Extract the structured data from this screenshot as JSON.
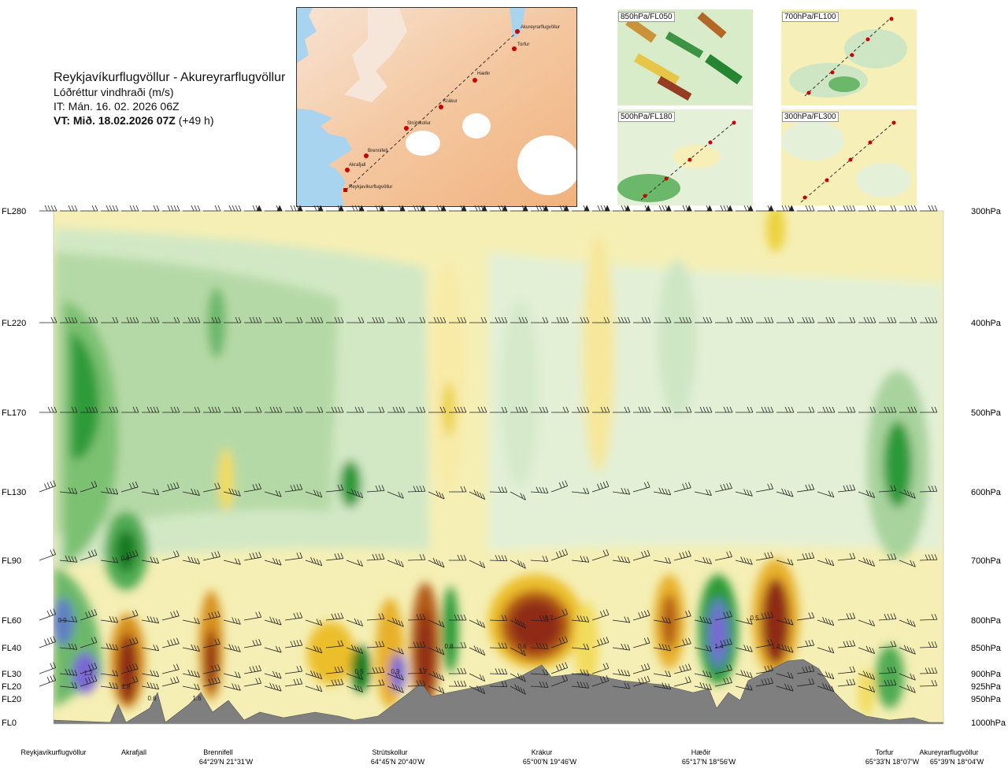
{
  "title": {
    "route": "Reykjavíkurflugvöllur - Akureyrarflugvöllur",
    "variable": "Lóðréttur vindhraði (m/s)",
    "issue_time": "IT: Mán. 16. 02. 2026 06Z",
    "valid_time": "VT: Mið. 18.02.2026 07Z",
    "lead": "(+49 h)"
  },
  "map": {
    "route_points": [
      "Akureyrarflugvöllur",
      "Torfur",
      "Hæðir",
      "Krákur",
      "Strútskollur",
      "Brennifell",
      "Akrafjall",
      "Reykjavíkurflugvöllur"
    ]
  },
  "thumbnails": [
    {
      "label": "850hPa/FL050"
    },
    {
      "label": "700hPa/FL100"
    },
    {
      "label": "500hPa/FL180"
    },
    {
      "label": "300hPa/FL300"
    }
  ],
  "chart_data": {
    "type": "heatmap",
    "title": "",
    "xlabel": "",
    "ylabel": "",
    "levels": [
      {
        "fl": "FL280",
        "hpa": "300hPa",
        "y": 268
      },
      {
        "fl": "FL220",
        "hpa": "400hPa",
        "y": 410
      },
      {
        "fl": "FL170",
        "hpa": "500hPa",
        "y": 524
      },
      {
        "fl": "FL130",
        "hpa": "600hPa",
        "y": 625
      },
      {
        "fl": "FL90",
        "hpa": "700hPa",
        "y": 712
      },
      {
        "fl": "FL60",
        "hpa": "800hPa",
        "y": 788
      },
      {
        "fl": "FL40",
        "hpa": "850hPa",
        "y": 823
      },
      {
        "fl": "FL30",
        "hpa": "900hPa",
        "y": 856
      },
      {
        "fl": "FL20",
        "hpa": "925hPa",
        "y": 872
      },
      {
        "fl": "FL20",
        "hpa": "950hPa",
        "y": 888
      },
      {
        "fl": "FL0",
        "hpa": "1000hPa",
        "y": 918
      }
    ],
    "locations": [
      {
        "name": "Reykjavíkurflugvöllur",
        "coord": "",
        "x": 68
      },
      {
        "name": "Akrafjall",
        "coord": "",
        "x": 170
      },
      {
        "name": "Brennifell",
        "coord": "64°29'N 21°31'W",
        "x": 277
      },
      {
        "name": "Strútskollur",
        "coord": "64°45'N 20°40'W",
        "x": 495
      },
      {
        "name": "Krákur",
        "coord": "65°00'N 19°46'W",
        "x": 688
      },
      {
        "name": "Hæðir",
        "coord": "65°17'N 18°56'W",
        "x": 890
      },
      {
        "name": "Torfur",
        "coord": "65°33'N 18°07'W",
        "x": 1123
      },
      {
        "name": "Akureyrarflugvöllur",
        "coord": "65°39'N 18°04'W",
        "x": 1205
      }
    ],
    "value_labels": [
      {
        "text": "0.6",
        "x": 159,
        "y": 712
      },
      {
        "text": "0.9",
        "x": 79,
        "y": 791
      },
      {
        "text": "1.2",
        "x": 112,
        "y": 858
      },
      {
        "text": "1.8",
        "x": 160,
        "y": 875
      },
      {
        "text": "0.6",
        "x": 193,
        "y": 890
      },
      {
        "text": "1.6",
        "x": 250,
        "y": 890
      },
      {
        "text": "0.5",
        "x": 456,
        "y": 856
      },
      {
        "text": "0.9",
        "x": 502,
        "y": 856
      },
      {
        "text": "1.7",
        "x": 537,
        "y": 856
      },
      {
        "text": "0.8",
        "x": 570,
        "y": 824
      },
      {
        "text": "0.7",
        "x": 697,
        "y": 788
      },
      {
        "text": "0.6",
        "x": 663,
        "y": 824
      },
      {
        "text": "1.4",
        "x": 913,
        "y": 824
      },
      {
        "text": "0.5",
        "x": 958,
        "y": 788
      },
      {
        "text": "1.4",
        "x": 985,
        "y": 824
      }
    ],
    "color_scale": {
      "down": [
        "#eaf4df",
        "#cfe6c4",
        "#a8d39d",
        "#6cb86a",
        "#2c9a37",
        "#127a20",
        "#5f7fc4",
        "#7a66d6"
      ],
      "up": [
        "#fdf7d6",
        "#f8eba8",
        "#f2dc5c",
        "#ecbe2c",
        "#d7901d",
        "#b25a16",
        "#8e2a12"
      ]
    }
  }
}
